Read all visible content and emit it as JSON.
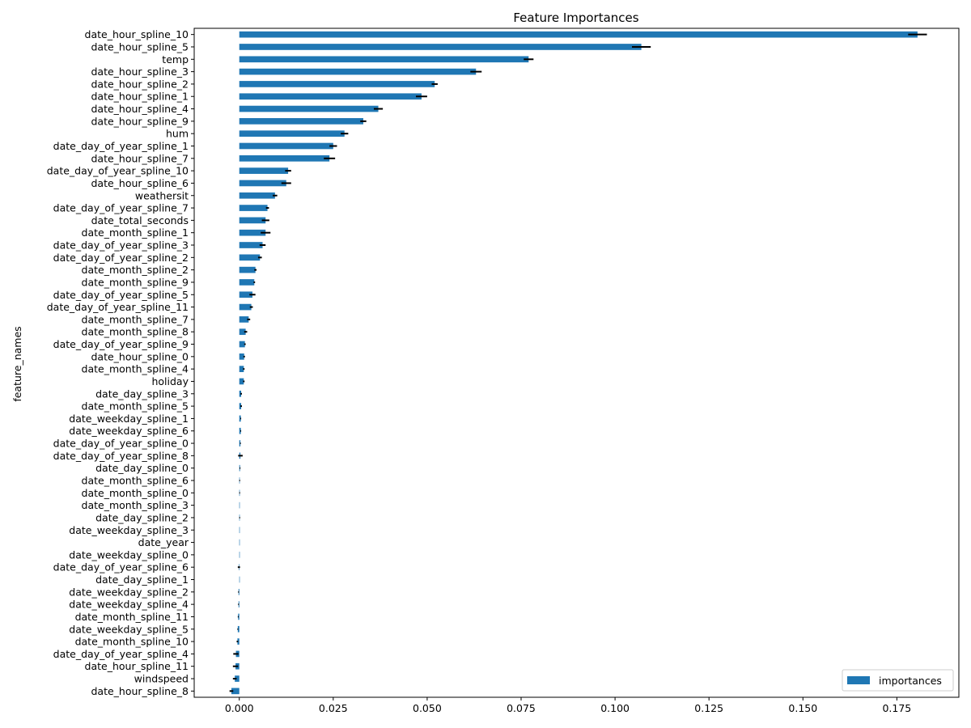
{
  "chart_data": {
    "type": "bar",
    "orientation": "horizontal",
    "title": "Feature Importances",
    "xlabel": "",
    "ylabel": "feature_names",
    "xlim": [
      -0.012,
      0.1915
    ],
    "xticks": [
      0.0,
      0.025,
      0.05,
      0.075,
      0.1,
      0.125,
      0.15,
      0.175
    ],
    "xtick_labels": [
      "0.000",
      "0.025",
      "0.050",
      "0.075",
      "0.100",
      "0.125",
      "0.150",
      "0.175"
    ],
    "grid": false,
    "legend": {
      "placement": "bottom-right",
      "entries": [
        "importances"
      ]
    },
    "colors": {
      "bar": "#1f77b4",
      "error": "#000000",
      "axis": "#000000"
    },
    "series": [
      {
        "name": "importances",
        "categories": [
          "date_hour_spline_10",
          "date_hour_spline_5",
          "temp",
          "date_hour_spline_3",
          "date_hour_spline_2",
          "date_hour_spline_1",
          "date_hour_spline_4",
          "date_hour_spline_9",
          "hum",
          "date_day_of_year_spline_1",
          "date_hour_spline_7",
          "date_day_of_year_spline_10",
          "date_hour_spline_6",
          "weathersit",
          "date_day_of_year_spline_7",
          "date_total_seconds",
          "date_month_spline_1",
          "date_day_of_year_spline_3",
          "date_day_of_year_spline_2",
          "date_month_spline_2",
          "date_month_spline_9",
          "date_day_of_year_spline_5",
          "date_day_of_year_spline_11",
          "date_month_spline_7",
          "date_month_spline_8",
          "date_day_of_year_spline_9",
          "date_hour_spline_0",
          "date_month_spline_4",
          "holiday",
          "date_day_spline_3",
          "date_month_spline_5",
          "date_weekday_spline_1",
          "date_weekday_spline_6",
          "date_day_of_year_spline_0",
          "date_day_of_year_spline_8",
          "date_day_spline_0",
          "date_month_spline_6",
          "date_month_spline_0",
          "date_month_spline_3",
          "date_day_spline_2",
          "date_weekday_spline_3",
          "date_year",
          "date_weekday_spline_0",
          "date_day_of_year_spline_6",
          "date_day_spline_1",
          "date_weekday_spline_2",
          "date_weekday_spline_4",
          "date_month_spline_11",
          "date_weekday_spline_5",
          "date_month_spline_10",
          "date_day_of_year_spline_4",
          "date_hour_spline_11",
          "windspeed",
          "date_hour_spline_8"
        ],
        "values": [
          0.1805,
          0.107,
          0.077,
          0.063,
          0.052,
          0.0485,
          0.037,
          0.033,
          0.028,
          0.025,
          0.024,
          0.013,
          0.0125,
          0.0095,
          0.0075,
          0.007,
          0.007,
          0.0062,
          0.0055,
          0.0043,
          0.004,
          0.0035,
          0.0032,
          0.0025,
          0.0017,
          0.0015,
          0.0013,
          0.0012,
          0.0012,
          0.0005,
          0.0005,
          0.0004,
          0.0004,
          0.0003,
          0.0003,
          0.0002,
          0.0001,
          0.0001,
          0.0,
          0.0001,
          0.0,
          0.0,
          0.0,
          -0.0001,
          0.0,
          -0.0002,
          -0.0002,
          -0.0003,
          -0.0004,
          -0.0005,
          -0.0009,
          -0.001,
          -0.0012,
          -0.0021
        ],
        "errors": [
          0.0025,
          0.0025,
          0.0013,
          0.0015,
          0.0008,
          0.0015,
          0.0012,
          0.0008,
          0.001,
          0.001,
          0.0015,
          0.0008,
          0.0013,
          0.0006,
          0.0004,
          0.001,
          0.0013,
          0.0008,
          0.0005,
          0.0003,
          0.0002,
          0.0008,
          0.0004,
          0.0004,
          0.0004,
          0.0002,
          0.0002,
          0.0002,
          0.0002,
          0.0002,
          0.0002,
          0.0001,
          0.0001,
          0.0001,
          0.0006,
          0.0001,
          0.0001,
          0.0001,
          0.0,
          0.0001,
          0.0,
          0.0,
          0.0,
          0.0003,
          0.0,
          0.0001,
          0.0001,
          0.0001,
          0.0001,
          0.0002,
          0.0007,
          0.0007,
          0.0005,
          0.0005
        ]
      }
    ]
  }
}
